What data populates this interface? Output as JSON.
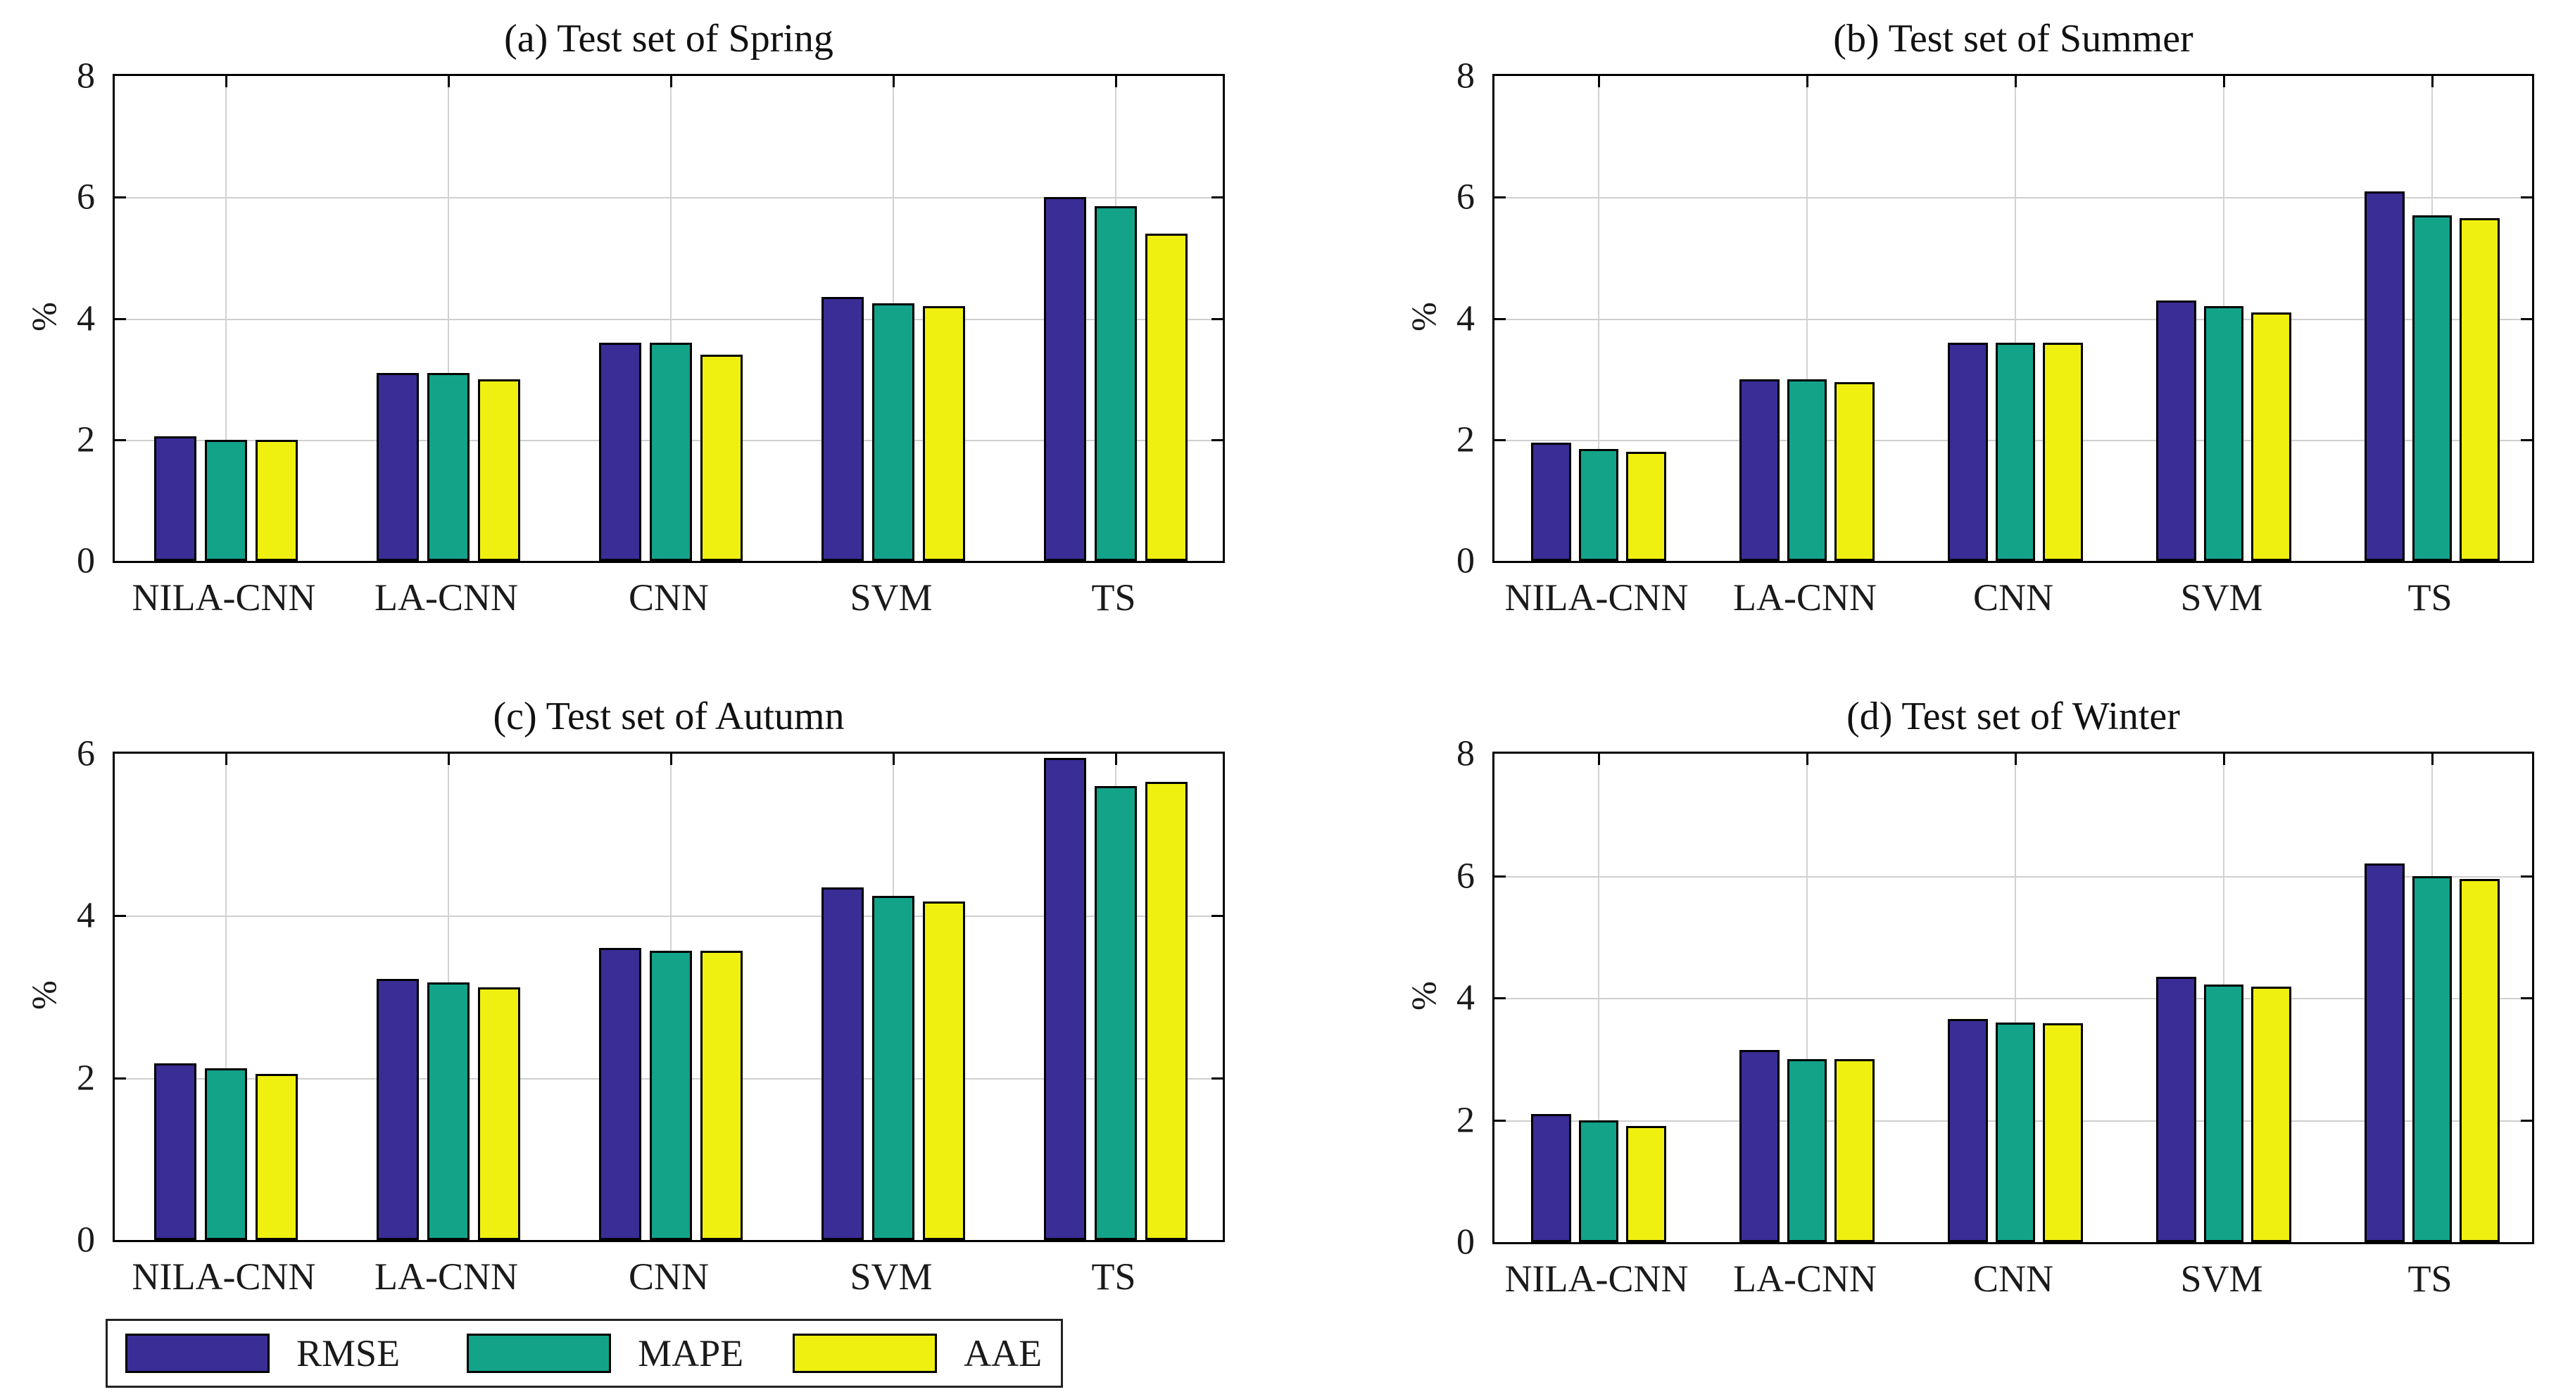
{
  "figure": {
    "description": "Four grouped bar charts comparing error metrics of forecasting models on seasonal test sets",
    "background_color": "#ffffff",
    "frame_color": "#000000",
    "gridline_color": "#cfcfcf"
  },
  "legend": {
    "position": "bottom-left",
    "entries": [
      {
        "label": "RMSE",
        "color": "#3A2D96"
      },
      {
        "label": "MAPE",
        "color": "#12A389"
      },
      {
        "label": "AAE",
        "color": "#EFF010"
      }
    ]
  },
  "chart_data": [
    {
      "type": "bar",
      "title": "(a) Test set of Spring",
      "ylabel": "%",
      "ylim": [
        0,
        8
      ],
      "yticks": [
        0,
        2,
        4,
        6,
        8
      ],
      "grid": true,
      "categories": [
        "NILA-CNN",
        "LA-CNN",
        "CNN",
        "SVM",
        "TS"
      ],
      "series": [
        {
          "name": "RMSE",
          "color": "#3A2D96",
          "values": [
            2.05,
            3.1,
            3.6,
            4.35,
            6.0
          ]
        },
        {
          "name": "MAPE",
          "color": "#12A389",
          "values": [
            2.0,
            3.1,
            3.6,
            4.25,
            5.85
          ]
        },
        {
          "name": "AAE",
          "color": "#EFF010",
          "values": [
            2.0,
            3.0,
            3.4,
            4.2,
            5.4
          ]
        }
      ]
    },
    {
      "type": "bar",
      "title": "(b) Test set of Summer",
      "ylabel": "%",
      "ylim": [
        0,
        8
      ],
      "yticks": [
        0,
        2,
        4,
        6,
        8
      ],
      "grid": true,
      "categories": [
        "NILA-CNN",
        "LA-CNN",
        "CNN",
        "SVM",
        "TS"
      ],
      "series": [
        {
          "name": "RMSE",
          "color": "#3A2D96",
          "values": [
            1.95,
            3.0,
            3.6,
            4.3,
            6.1
          ]
        },
        {
          "name": "MAPE",
          "color": "#12A389",
          "values": [
            1.85,
            3.0,
            3.6,
            4.2,
            5.7
          ]
        },
        {
          "name": "AAE",
          "color": "#EFF010",
          "values": [
            1.8,
            2.95,
            3.6,
            4.1,
            5.65
          ]
        }
      ]
    },
    {
      "type": "bar",
      "title": "(c) Test set of Autumn",
      "ylabel": "%",
      "ylim": [
        0,
        6
      ],
      "yticks": [
        0,
        2,
        4,
        6
      ],
      "grid": true,
      "categories": [
        "NILA-CNN",
        "LA-CNN",
        "CNN",
        "SVM",
        "TS"
      ],
      "series": [
        {
          "name": "RMSE",
          "color": "#3A2D96",
          "values": [
            2.18,
            3.22,
            3.6,
            4.35,
            5.95
          ]
        },
        {
          "name": "MAPE",
          "color": "#12A389",
          "values": [
            2.12,
            3.18,
            3.57,
            4.25,
            5.6
          ]
        },
        {
          "name": "AAE",
          "color": "#EFF010",
          "values": [
            2.05,
            3.12,
            3.57,
            4.18,
            5.65
          ]
        }
      ]
    },
    {
      "type": "bar",
      "title": "(d) Test set of Winter",
      "ylabel": "%",
      "ylim": [
        0,
        8
      ],
      "yticks": [
        0,
        2,
        4,
        6,
        8
      ],
      "grid": true,
      "categories": [
        "NILA-CNN",
        "LA-CNN",
        "CNN",
        "SVM",
        "TS"
      ],
      "series": [
        {
          "name": "RMSE",
          "color": "#3A2D96",
          "values": [
            2.1,
            3.15,
            3.65,
            4.35,
            6.2
          ]
        },
        {
          "name": "MAPE",
          "color": "#12A389",
          "values": [
            2.0,
            3.0,
            3.6,
            4.22,
            6.0
          ]
        },
        {
          "name": "AAE",
          "color": "#EFF010",
          "values": [
            1.9,
            3.0,
            3.58,
            4.18,
            5.95
          ]
        }
      ]
    }
  ]
}
